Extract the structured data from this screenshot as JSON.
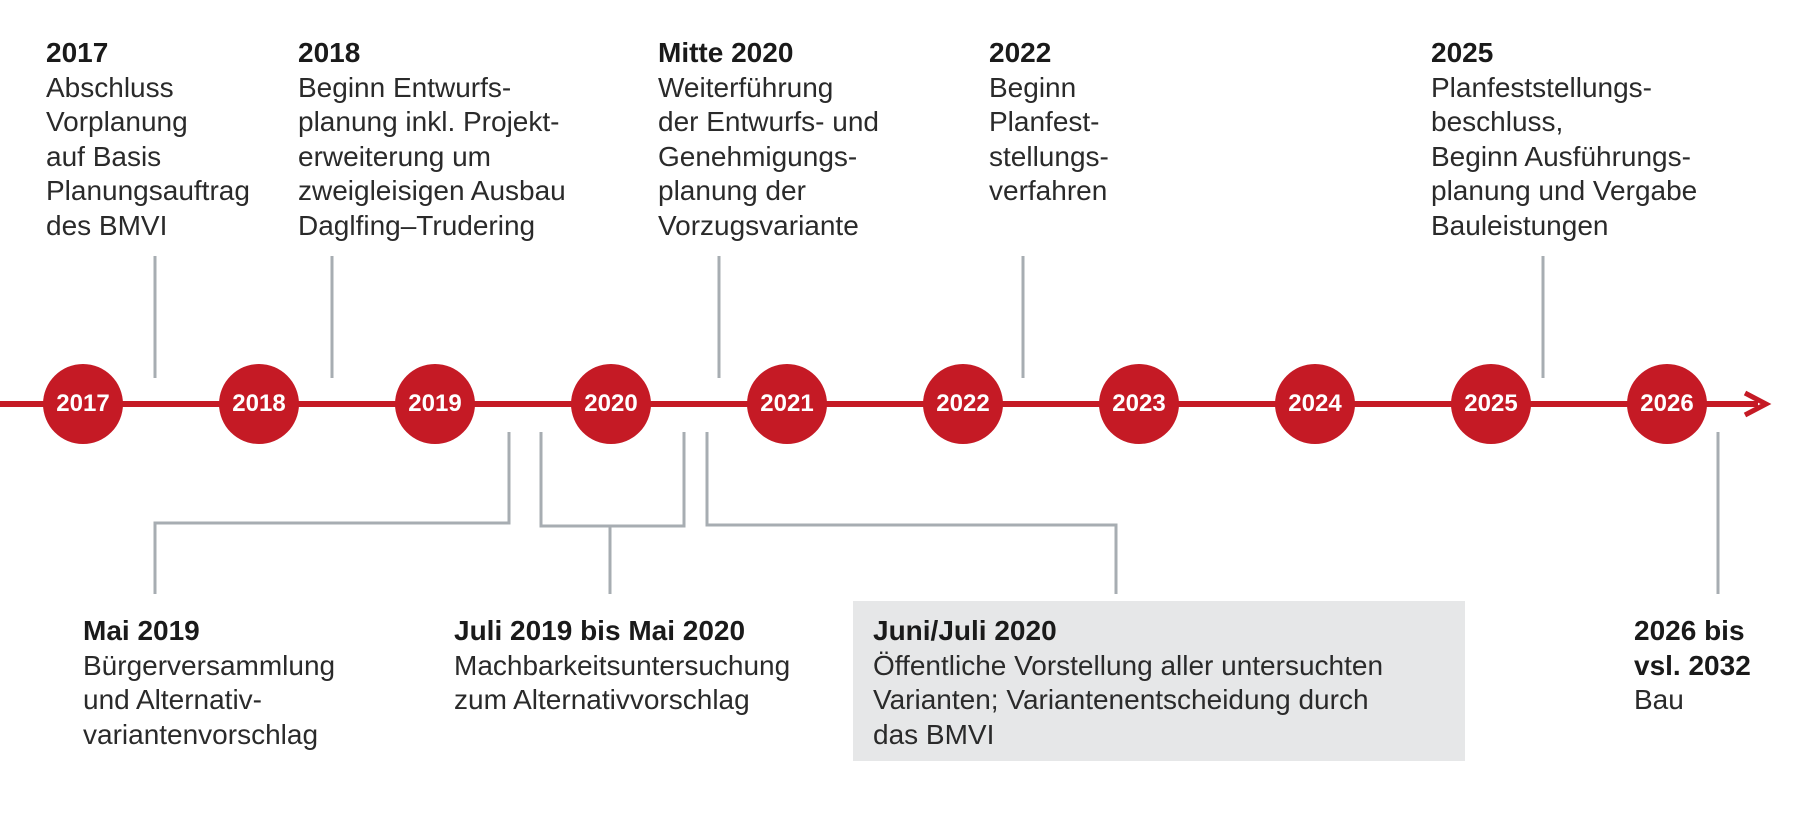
{
  "timeline": {
    "accent_color": "#c51a25",
    "connector_color": "#a7adb2",
    "box_color": "#e6e7e8",
    "years": [
      "2017",
      "2018",
      "2019",
      "2020",
      "2021",
      "2022",
      "2023",
      "2024",
      "2025",
      "2026"
    ]
  },
  "top_events": [
    {
      "head": "2017",
      "body": "Abschluss\nVorplanung\nauf Basis\nPlanungsauftrag\ndes BMVI"
    },
    {
      "head": "2018",
      "body": "Beginn Entwurfs-\nplanung inkl. Projekt-\nerweiterung um\nzweigleisigen Ausbau\nDaglfing–Trudering"
    },
    {
      "head": "Mitte 2020",
      "body": "Weiterführung\nder Entwurfs- und\nGenehmigungs-\nplanung der\nVorzugsvariante"
    },
    {
      "head": "2022",
      "body": "Beginn\nPlanfest-\nstellungs-\nverfahren"
    },
    {
      "head": "2025",
      "body": "Planfeststellungs-\nbeschluss,\nBeginn Ausführungs-\nplanung und Vergabe\nBauleistungen"
    }
  ],
  "bottom_events": [
    {
      "head": "Mai 2019",
      "body": "Bürgerversammlung\nund Alternativ-\nvariantenvorschlag"
    },
    {
      "head": "Juli 2019 bis Mai 2020",
      "body": "Machbarkeitsuntersuchung\nzum Alternativvorschlag"
    },
    {
      "head": "Juni/Juli 2020",
      "body": "Öffentliche Vorstellung aller untersuchten\nVarianten; Variantenentscheidung durch\ndas BMVI"
    },
    {
      "head": "2026 bis\nvsl. 2032",
      "body": "Bau"
    }
  ]
}
